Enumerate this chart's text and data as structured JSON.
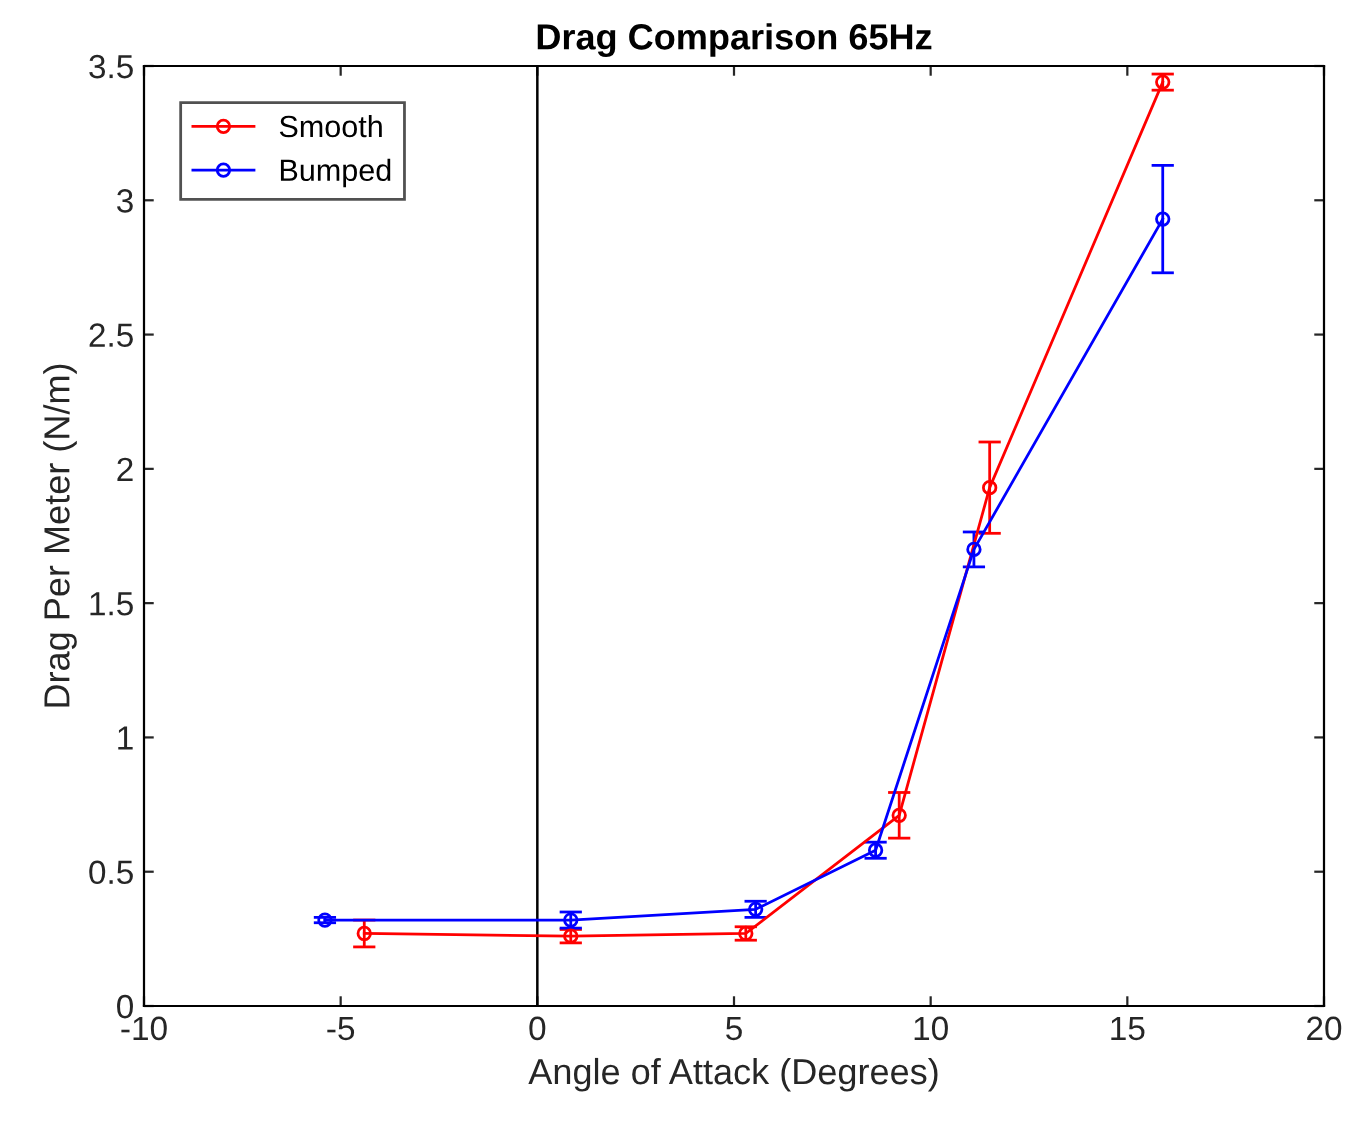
{
  "chart_data": {
    "type": "line",
    "title": "Drag Comparison 65Hz",
    "xlabel": "Angle of Attack (Degrees)",
    "ylabel": "Drag Per Meter (N/m)",
    "xlim": [
      -10,
      20
    ],
    "xticks": [
      -10,
      -5,
      0,
      5,
      10,
      15,
      20
    ],
    "ylim": [
      0,
      3.5
    ],
    "yticks": [
      0,
      0.5,
      1,
      1.5,
      2,
      2.5,
      3,
      3.5
    ],
    "grid": false,
    "legend": "top left",
    "marker": "circle",
    "line_style": "solid",
    "ref_lines": [
      {
        "axis": "x",
        "value": 0,
        "color": "#000000"
      }
    ],
    "series": [
      {
        "name": "Smooth",
        "color": "#ff0000",
        "x": [
          -4.4,
          0.85,
          5.3,
          9.2,
          11.5,
          15.9
        ],
        "values": [
          0.27,
          0.26,
          0.27,
          0.71,
          1.93,
          3.44
        ],
        "errors": [
          0.05,
          0.025,
          0.025,
          0.085,
          0.17,
          0.03
        ]
      },
      {
        "name": "Bumped",
        "color": "#0000ff",
        "x": [
          -5.4,
          0.85,
          5.55,
          8.6,
          11.1,
          15.9
        ],
        "values": [
          0.32,
          0.32,
          0.36,
          0.58,
          1.7,
          2.93
        ],
        "errors": [
          0.01,
          0.03,
          0.03,
          0.03,
          0.065,
          0.2
        ]
      }
    ]
  }
}
